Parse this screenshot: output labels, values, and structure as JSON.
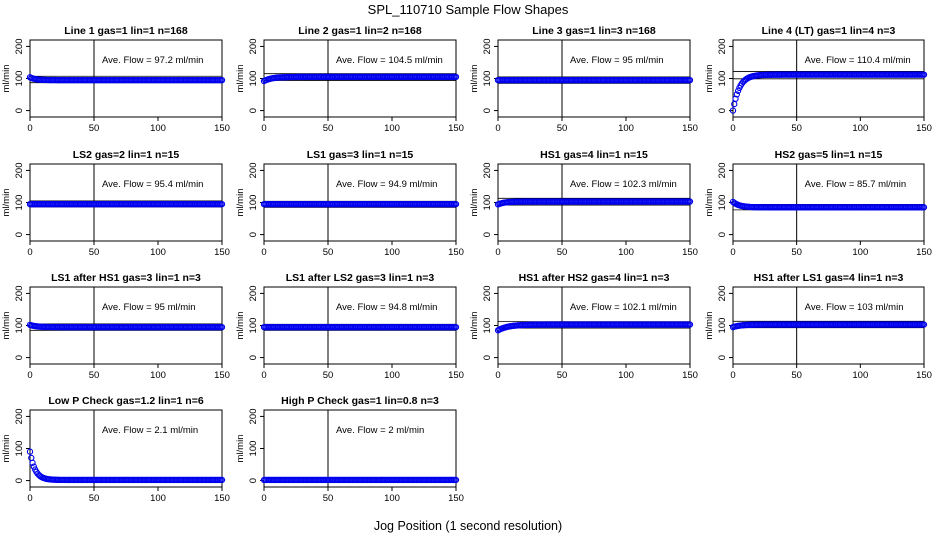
{
  "page": {
    "title": "SPL_110710  Sample Flow Shapes",
    "xlabel": "Jog Position (1 second resolution)"
  },
  "chart_data": [
    {
      "type": "scatter",
      "title": "Line 1 gas=1 lin=1 n=168",
      "ylabel": "ml/min",
      "annotation": "Ave. Flow = 97.2  ml/min",
      "xlim": [
        0,
        150
      ],
      "ylim": [
        -20,
        220
      ],
      "xticks": [
        "0",
        "50",
        "100",
        "150"
      ],
      "yticks": [
        "0",
        "100",
        "200"
      ],
      "vline_x": 50,
      "hlines": [
        107,
        87
      ],
      "series": [
        {
          "name": "",
          "shape": "decay",
          "start": 104,
          "final": 95,
          "tau": 4
        }
      ]
    },
    {
      "type": "scatter",
      "title": "Line 2 gas=1 lin=2 n=168",
      "ylabel": "ml/min",
      "annotation": "Ave. Flow = 104.5  ml/min",
      "xlim": [
        0,
        150
      ],
      "ylim": [
        -20,
        220
      ],
      "xticks": [
        "0",
        "50",
        "100",
        "150"
      ],
      "yticks": [
        "0",
        "100",
        "200"
      ],
      "vline_x": 50,
      "hlines": [
        115,
        94
      ],
      "series": [
        {
          "name": "",
          "shape": "rise",
          "start": 92,
          "final": 105,
          "tau": 6
        }
      ]
    },
    {
      "type": "scatter",
      "title": "Line 3 gas=1 lin=3 n=168",
      "ylabel": "ml/min",
      "annotation": "Ave. Flow = 95  ml/min",
      "xlim": [
        0,
        150
      ],
      "ylim": [
        -20,
        220
      ],
      "xticks": [
        "0",
        "50",
        "100",
        "150"
      ],
      "yticks": [
        "0",
        "100",
        "200"
      ],
      "vline_x": 50,
      "hlines": [
        105,
        85
      ],
      "series": [
        {
          "name": "",
          "shape": "flat",
          "start": 95,
          "final": 95,
          "tau": 1
        }
      ]
    },
    {
      "type": "scatter",
      "title": "Line 4 (LT) gas=1 lin=4 n=3",
      "ylabel": "ml/min",
      "annotation": "Ave. Flow = 110.4  ml/min",
      "xlim": [
        0,
        150
      ],
      "ylim": [
        -20,
        220
      ],
      "xticks": [
        "0",
        "50",
        "100",
        "150"
      ],
      "yticks": [
        "0",
        "100",
        "200"
      ],
      "vline_x": 50,
      "hlines": [
        122,
        99
      ],
      "series": [
        {
          "name": "",
          "shape": "rise",
          "start": 0,
          "final": 112,
          "tau": 5
        }
      ]
    },
    {
      "type": "scatter",
      "title": "LS2 gas=2 lin=1 n=15",
      "ylabel": "ml/min",
      "annotation": "Ave. Flow = 95.4  ml/min",
      "xlim": [
        0,
        150
      ],
      "ylim": [
        -20,
        220
      ],
      "xticks": [
        "0",
        "50",
        "100",
        "150"
      ],
      "yticks": [
        "0",
        "100",
        "200"
      ],
      "vline_x": 50,
      "hlines": [
        105,
        86
      ],
      "series": [
        {
          "name": "",
          "shape": "flat",
          "start": 95,
          "final": 95,
          "tau": 1
        }
      ]
    },
    {
      "type": "scatter",
      "title": "LS1 gas=3 lin=1 n=15",
      "ylabel": "ml/min",
      "annotation": "Ave. Flow = 94.9  ml/min",
      "xlim": [
        0,
        150
      ],
      "ylim": [
        -20,
        220
      ],
      "xticks": [
        "0",
        "50",
        "100",
        "150"
      ],
      "yticks": [
        "0",
        "100",
        "200"
      ],
      "vline_x": 50,
      "hlines": [
        104,
        85
      ],
      "series": [
        {
          "name": "",
          "shape": "flat",
          "start": 95,
          "final": 95,
          "tau": 1
        }
      ]
    },
    {
      "type": "scatter",
      "title": "HS1 gas=4 lin=1 n=15",
      "ylabel": "ml/min",
      "annotation": "Ave. Flow = 102.3  ml/min",
      "xlim": [
        0,
        150
      ],
      "ylim": [
        -20,
        220
      ],
      "xticks": [
        "0",
        "50",
        "100",
        "150"
      ],
      "yticks": [
        "0",
        "100",
        "200"
      ],
      "vline_x": 50,
      "hlines": [
        113,
        92
      ],
      "series": [
        {
          "name": "",
          "shape": "rise",
          "start": 94,
          "final": 103,
          "tau": 5
        }
      ]
    },
    {
      "type": "scatter",
      "title": "HS2 gas=5 lin=1 n=15",
      "ylabel": "ml/min",
      "annotation": "Ave. Flow = 85.7  ml/min",
      "xlim": [
        0,
        150
      ],
      "ylim": [
        -20,
        220
      ],
      "xticks": [
        "0",
        "50",
        "100",
        "150"
      ],
      "yticks": [
        "0",
        "100",
        "200"
      ],
      "vline_x": 50,
      "hlines": [
        94,
        77
      ],
      "series": [
        {
          "name": "",
          "shape": "decay",
          "start": 102,
          "final": 85,
          "tau": 5
        }
      ]
    },
    {
      "type": "scatter",
      "title": "LS1 after HS1 gas=3 lin=1 n=3",
      "ylabel": "ml/min",
      "annotation": "Ave. Flow = 95  ml/min",
      "xlim": [
        0,
        150
      ],
      "ylim": [
        -20,
        220
      ],
      "xticks": [
        "0",
        "50",
        "100",
        "150"
      ],
      "yticks": [
        "0",
        "100",
        "200"
      ],
      "vline_x": 50,
      "hlines": [
        105,
        85
      ],
      "series": [
        {
          "name": "",
          "shape": "decay",
          "start": 102,
          "final": 95,
          "tau": 5
        }
      ]
    },
    {
      "type": "scatter",
      "title": "LS1 after LS2 gas=3 lin=1 n=3",
      "ylabel": "ml/min",
      "annotation": "Ave. Flow = 94.8  ml/min",
      "xlim": [
        0,
        150
      ],
      "ylim": [
        -20,
        220
      ],
      "xticks": [
        "0",
        "50",
        "100",
        "150"
      ],
      "yticks": [
        "0",
        "100",
        "200"
      ],
      "vline_x": 50,
      "hlines": [
        104,
        85
      ],
      "series": [
        {
          "name": "",
          "shape": "flat",
          "start": 95,
          "final": 95,
          "tau": 1
        }
      ]
    },
    {
      "type": "scatter",
      "title": "HS1 after HS2 gas=4 lin=1 n=3",
      "ylabel": "ml/min",
      "annotation": "Ave. Flow = 102.1  ml/min",
      "xlim": [
        0,
        150
      ],
      "ylim": [
        -20,
        220
      ],
      "xticks": [
        "0",
        "50",
        "100",
        "150"
      ],
      "yticks": [
        "0",
        "100",
        "200"
      ],
      "vline_x": 50,
      "hlines": [
        112,
        92
      ],
      "series": [
        {
          "name": "",
          "shape": "rise",
          "start": 85,
          "final": 103,
          "tau": 8
        }
      ]
    },
    {
      "type": "scatter",
      "title": "HS1 after LS1 gas=4 lin=1 n=3",
      "ylabel": "ml/min",
      "annotation": "Ave. Flow = 103  ml/min",
      "xlim": [
        0,
        150
      ],
      "ylim": [
        -20,
        220
      ],
      "xticks": [
        "0",
        "50",
        "100",
        "150"
      ],
      "yticks": [
        "0",
        "100",
        "200"
      ],
      "vline_x": 50,
      "hlines": [
        113,
        93
      ],
      "series": [
        {
          "name": "",
          "shape": "rise",
          "start": 95,
          "final": 103,
          "tau": 6
        }
      ]
    },
    {
      "type": "scatter",
      "title": "Low P Check gas=1.2 lin=1 n=6",
      "ylabel": "ml/min",
      "annotation": "Ave. Flow = 2.1  ml/min",
      "xlim": [
        0,
        150
      ],
      "ylim": [
        -20,
        220
      ],
      "xticks": [
        "0",
        "50",
        "100",
        "150"
      ],
      "yticks": [
        "0",
        "100",
        "200"
      ],
      "vline_x": 50,
      "hlines": [],
      "series": [
        {
          "name": "",
          "shape": "decay",
          "start": 90,
          "final": 2,
          "tau": 4
        }
      ]
    },
    {
      "type": "scatter",
      "title": "High P Check gas=1 lin=0.8 n=3",
      "ylabel": "ml/min",
      "annotation": "Ave. Flow = 2  ml/min",
      "xlim": [
        0,
        150
      ],
      "ylim": [
        -20,
        220
      ],
      "xticks": [
        "0",
        "50",
        "100",
        "150"
      ],
      "yticks": [
        "0",
        "100",
        "200"
      ],
      "vline_x": 50,
      "hlines": [],
      "series": [
        {
          "name": "",
          "shape": "flat",
          "start": 2,
          "final": 2,
          "tau": 1
        }
      ]
    }
  ]
}
